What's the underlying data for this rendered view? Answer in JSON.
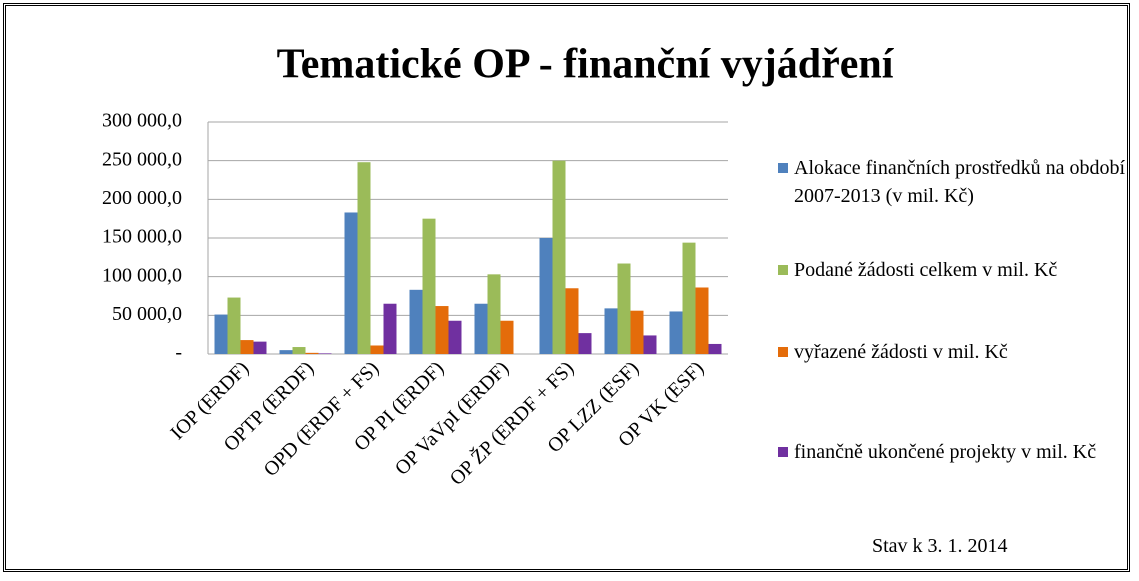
{
  "chart_data": {
    "type": "bar",
    "title": "Tematické OP - finanční vyjádření",
    "note": "Stav k 3. 1. 2014",
    "categories": [
      "IOP (ERDF)",
      "OPTP (ERDF)",
      "OPD (ERDF + FS)",
      "OP PI (ERDF)",
      "OP VaVpI (ERDF)",
      "OP ŽP (ERDF + FS)",
      "OP LZZ (ESF)",
      "OP VK (ESF)"
    ],
    "series": [
      {
        "name": "Alokace finančních prostředků na období 2007-2013 (v mil. Kč)",
        "color": "#4f81bd",
        "values": [
          51000,
          5000,
          183000,
          83000,
          65000,
          150000,
          59000,
          55000
        ]
      },
      {
        "name": "Podané žádosti celkem v mil. Kč",
        "color": "#9bbb59",
        "values": [
          73000,
          9000,
          248000,
          175000,
          103000,
          250000,
          117000,
          144000
        ]
      },
      {
        "name": "vyřazené žádosti v mil. Kč",
        "color": "#e46c0a",
        "values": [
          18000,
          1500,
          11000,
          62000,
          43000,
          85000,
          56000,
          86000
        ]
      },
      {
        "name": "finančně ukončené projekty v mil. Kč",
        "color": "#7030a0",
        "values": [
          16000,
          800,
          65000,
          43000,
          0,
          27000,
          24000,
          13000
        ]
      }
    ],
    "ylim": [
      0,
      300000
    ],
    "yticks": [
      {
        "value": 0,
        "label": "-"
      },
      {
        "value": 50000,
        "label": "50 000,0"
      },
      {
        "value": 100000,
        "label": "100 000,0"
      },
      {
        "value": 150000,
        "label": "150 000,0"
      },
      {
        "value": 200000,
        "label": "200 000,0"
      },
      {
        "value": 250000,
        "label": "250 000,0"
      },
      {
        "value": 300000,
        "label": "300 000,0"
      }
    ],
    "grid": true,
    "legend": "right"
  }
}
